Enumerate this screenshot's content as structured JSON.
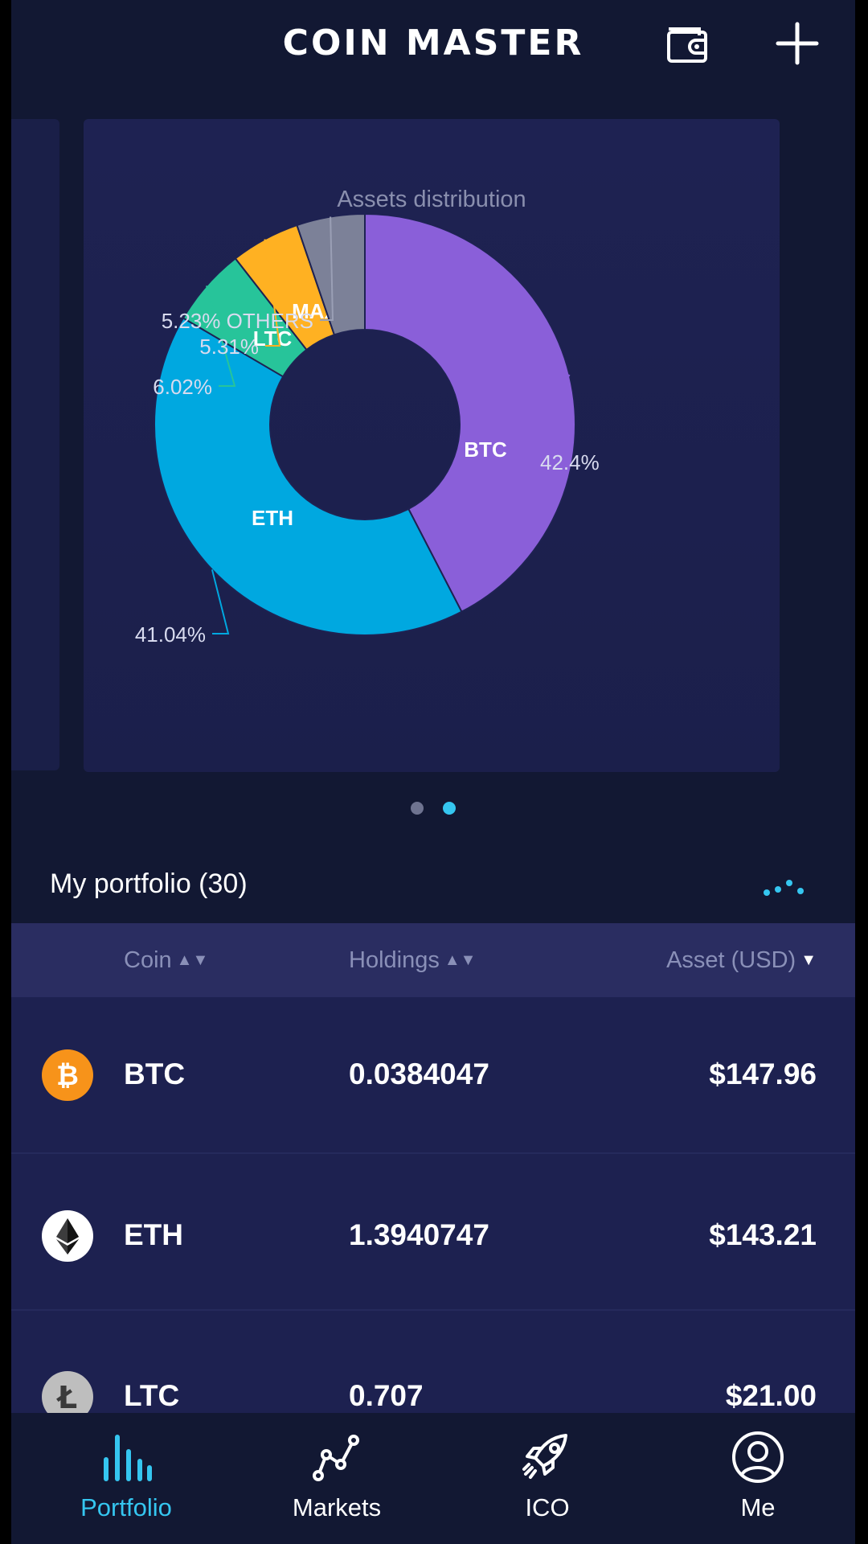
{
  "app": {
    "title": "COIN MASTER"
  },
  "header": {
    "wallet_icon": "wallet-icon",
    "add_icon": "plus-icon"
  },
  "chart_card": {
    "title": "Assets distribution"
  },
  "chart_data": {
    "type": "pie",
    "title": "Assets distribution",
    "donut": true,
    "slices": [
      {
        "label": "BTC",
        "value": 42.4,
        "display": "42.4%",
        "color": "#8a5fd9"
      },
      {
        "label": "ETH",
        "value": 41.04,
        "display": "41.04%",
        "color": "#00a8e0"
      },
      {
        "label": "LTC",
        "value": 6.02,
        "display": "6.02%",
        "color": "#27c49a"
      },
      {
        "label": "MAX",
        "value": 5.31,
        "display": "5.31%",
        "color": "#ffb122"
      },
      {
        "label": "OTHERS",
        "value": 5.23,
        "display": "5.23% OTHERS",
        "color": "#7c8198"
      }
    ]
  },
  "carousel": {
    "page_count": 2,
    "active_page": 2
  },
  "portfolio": {
    "title": "My portfolio (30)",
    "more_icon": "more-dots-icon",
    "columns": {
      "coin": "Coin",
      "holdings": "Holdings",
      "asset": "Asset (USD)"
    },
    "rows": [
      {
        "coin": "BTC",
        "holdings": "0.0384047",
        "asset": "$147.96",
        "icon": "bitcoin-icon",
        "icon_glyph": "₿",
        "icon_color": "#f7931a"
      },
      {
        "coin": "ETH",
        "holdings": "1.3940747",
        "asset": "$143.21",
        "icon": "ethereum-icon",
        "icon_glyph": "",
        "icon_color": "#ffffff"
      },
      {
        "coin": "LTC",
        "holdings": "0.707",
        "asset": "$21.00",
        "icon": "litecoin-icon",
        "icon_glyph": "Ł",
        "icon_color": "#bebebe"
      }
    ]
  },
  "nav": {
    "items": [
      {
        "label": "Portfolio",
        "icon": "bar-chart-icon",
        "active": true
      },
      {
        "label": "Markets",
        "icon": "line-chart-icon",
        "active": false
      },
      {
        "label": "ICO",
        "icon": "rocket-icon",
        "active": false
      },
      {
        "label": "Me",
        "icon": "user-icon",
        "active": false
      }
    ]
  },
  "colors": {
    "accent": "#35c6f0",
    "background": "#121833",
    "card": "#1e2252",
    "table_header": "#2a2d61"
  }
}
